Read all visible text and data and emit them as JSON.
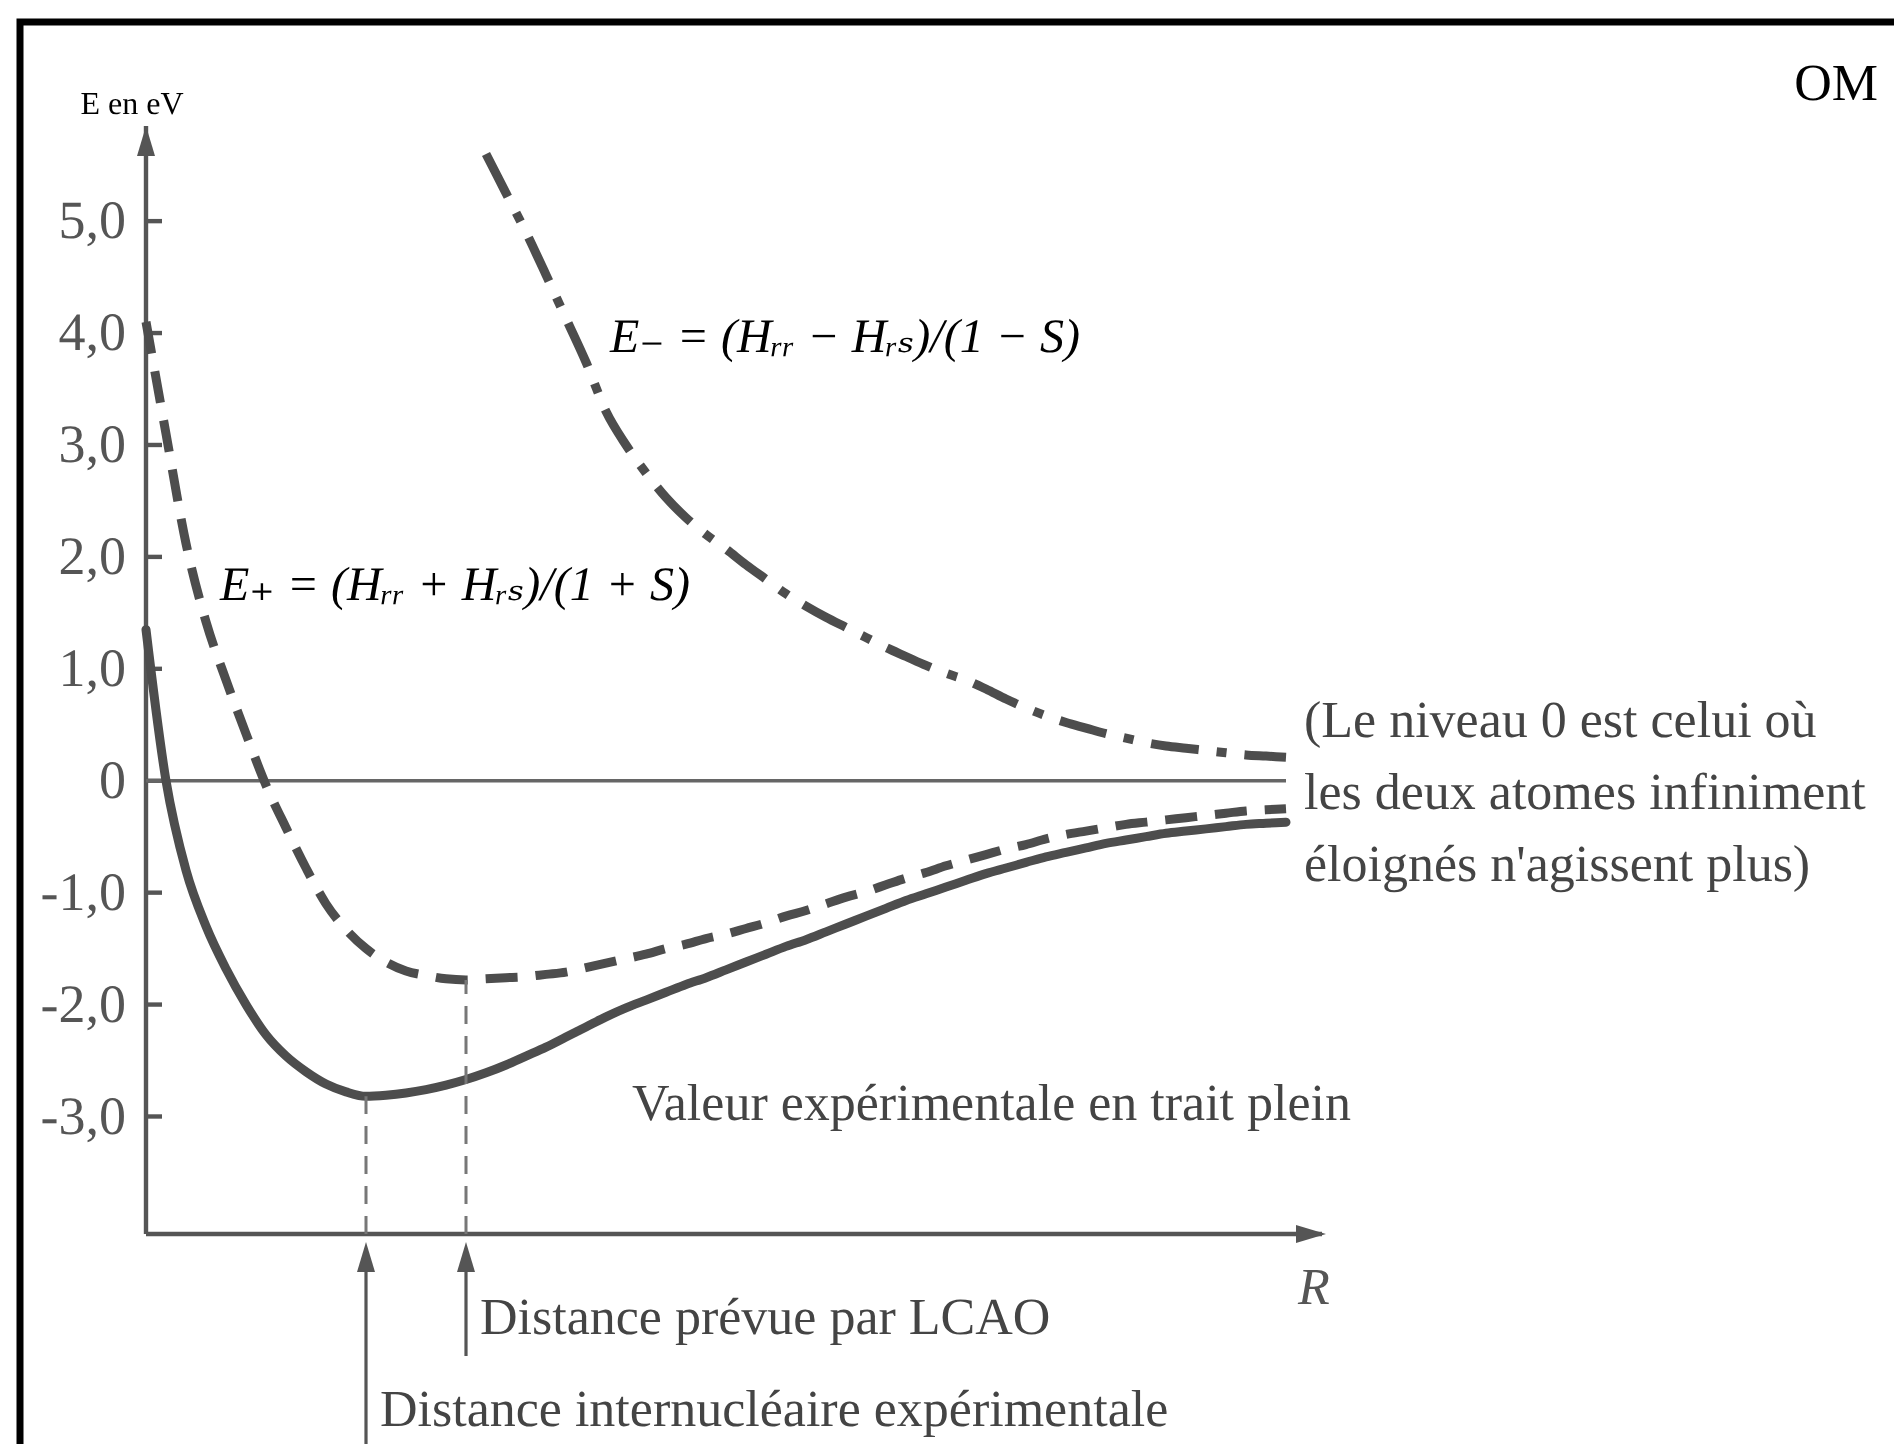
{
  "chart_data": {
    "type": "line",
    "title": "OM",
    "xlabel": "R",
    "ylabel": "E en eV",
    "categories": [
      null,
      null,
      null,
      null,
      null,
      null,
      null,
      null,
      null,
      null,
      null,
      null,
      null,
      null,
      null,
      null,
      null,
      null,
      null,
      null,
      null,
      null,
      null,
      null,
      null,
      null,
      null,
      null,
      null,
      null,
      null,
      null,
      null,
      null,
      null,
      null,
      null,
      null,
      null,
      null,
      null,
      null,
      null,
      null,
      null,
      null,
      null,
      null,
      null,
      null,
      null,
      null,
      null,
      null,
      null,
      null,
      null,
      null
    ],
    "ylim": [
      -4.05,
      5.85
    ],
    "yticks": [
      {
        "value": -3,
        "label": "-3,0"
      },
      {
        "value": -2,
        "label": "-2,0"
      },
      {
        "value": -1,
        "label": "-1,0"
      },
      0,
      {
        "value": 1,
        "label": "1,0"
      },
      {
        "value": 2,
        "label": "2,0"
      },
      {
        "value": 3,
        "label": "3,0"
      },
      {
        "value": 4,
        "label": "4,0"
      },
      {
        "value": 5,
        "label": "5,0"
      }
    ],
    "tick_labels": "y",
    "series": [
      {
        "color": "#4d4d4d",
        "line_style": "solid",
        "values": [
          1.35,
          0,
          -0.8,
          -1.3,
          -1.68,
          -2.0,
          -2.27,
          -2.46,
          -2.6,
          -2.71,
          -2.78,
          -2.82,
          -2.81,
          -2.79,
          -2.76,
          -2.72,
          -2.67,
          -2.61,
          -2.54,
          -2.46,
          -2.38,
          -2.29,
          -2.2,
          -2.11,
          -2.03,
          -1.96,
          -1.89,
          -1.82,
          -1.76,
          -1.69,
          -1.62,
          -1.55,
          -1.48,
          -1.42,
          -1.35,
          -1.28,
          -1.21,
          -1.14,
          -1.07,
          -1.01,
          -0.95,
          -0.89,
          -0.83,
          -0.78,
          -0.73,
          -0.68,
          -0.64,
          -0.6,
          -0.56,
          -0.53,
          -0.5,
          -0.47,
          -0.45,
          -0.43,
          -0.41,
          -0.39,
          -0.38,
          -0.37
        ]
      },
      {
        "name": "E₊ = (Hᵣᵣ + Hᵣₛ)/(1 + S)",
        "color": "#4d4d4d",
        "line_style": "dashed",
        "values": [
          4.1,
          3.1,
          2.12,
          1.42,
          0.9,
          0.42,
          -0.04,
          -0.42,
          -0.78,
          -1.1,
          -1.33,
          -1.5,
          -1.62,
          -1.7,
          -1.74,
          -1.77,
          -1.78,
          -1.77,
          -1.76,
          -1.75,
          -1.73,
          -1.71,
          -1.67,
          -1.63,
          -1.59,
          -1.55,
          -1.5,
          -1.46,
          -1.41,
          -1.37,
          -1.32,
          -1.27,
          -1.21,
          -1.16,
          -1.1,
          -1.04,
          -0.99,
          -0.93,
          -0.87,
          -0.82,
          -0.76,
          -0.71,
          -0.66,
          -0.61,
          -0.57,
          -0.52,
          -0.48,
          -0.45,
          -0.42,
          -0.39,
          -0.37,
          -0.35,
          -0.33,
          -0.31,
          -0.29,
          -0.27,
          -0.26,
          -0.25
        ]
      },
      {
        "name": "E₋ = (Hᵣᵣ − Hᵣₛ)/(1 − S)",
        "color": "#4d4d4d",
        "line_style": "dashdot",
        "values": [
          null,
          null,
          null,
          null,
          null,
          null,
          null,
          null,
          null,
          null,
          null,
          null,
          null,
          null,
          null,
          null,
          null,
          5.6,
          5.25,
          4.9,
          4.52,
          4.13,
          3.74,
          3.3,
          3.0,
          2.75,
          2.53,
          2.35,
          2.2,
          2.07,
          1.93,
          1.8,
          1.67,
          1.56,
          1.46,
          1.37,
          1.28,
          1.19,
          1.11,
          1.03,
          0.96,
          0.9,
          0.82,
          0.73,
          0.65,
          0.58,
          0.52,
          0.47,
          0.42,
          0.38,
          0.34,
          0.31,
          0.29,
          0.27,
          0.25,
          0.23,
          0.22,
          0.21
        ]
      }
    ],
    "ref_lines": [
      {
        "axis": "y",
        "value": 0,
        "label": "(Le niveau 0 est celui où les deux atomes infiniment éloignés n'agissent plus)",
        "color": "#666666"
      }
    ],
    "annotations": [
      "Valeur expérimentale en trait plein",
      "Distance prévue par LCAO",
      "Distance internucléaire expérimentale"
    ]
  }
}
